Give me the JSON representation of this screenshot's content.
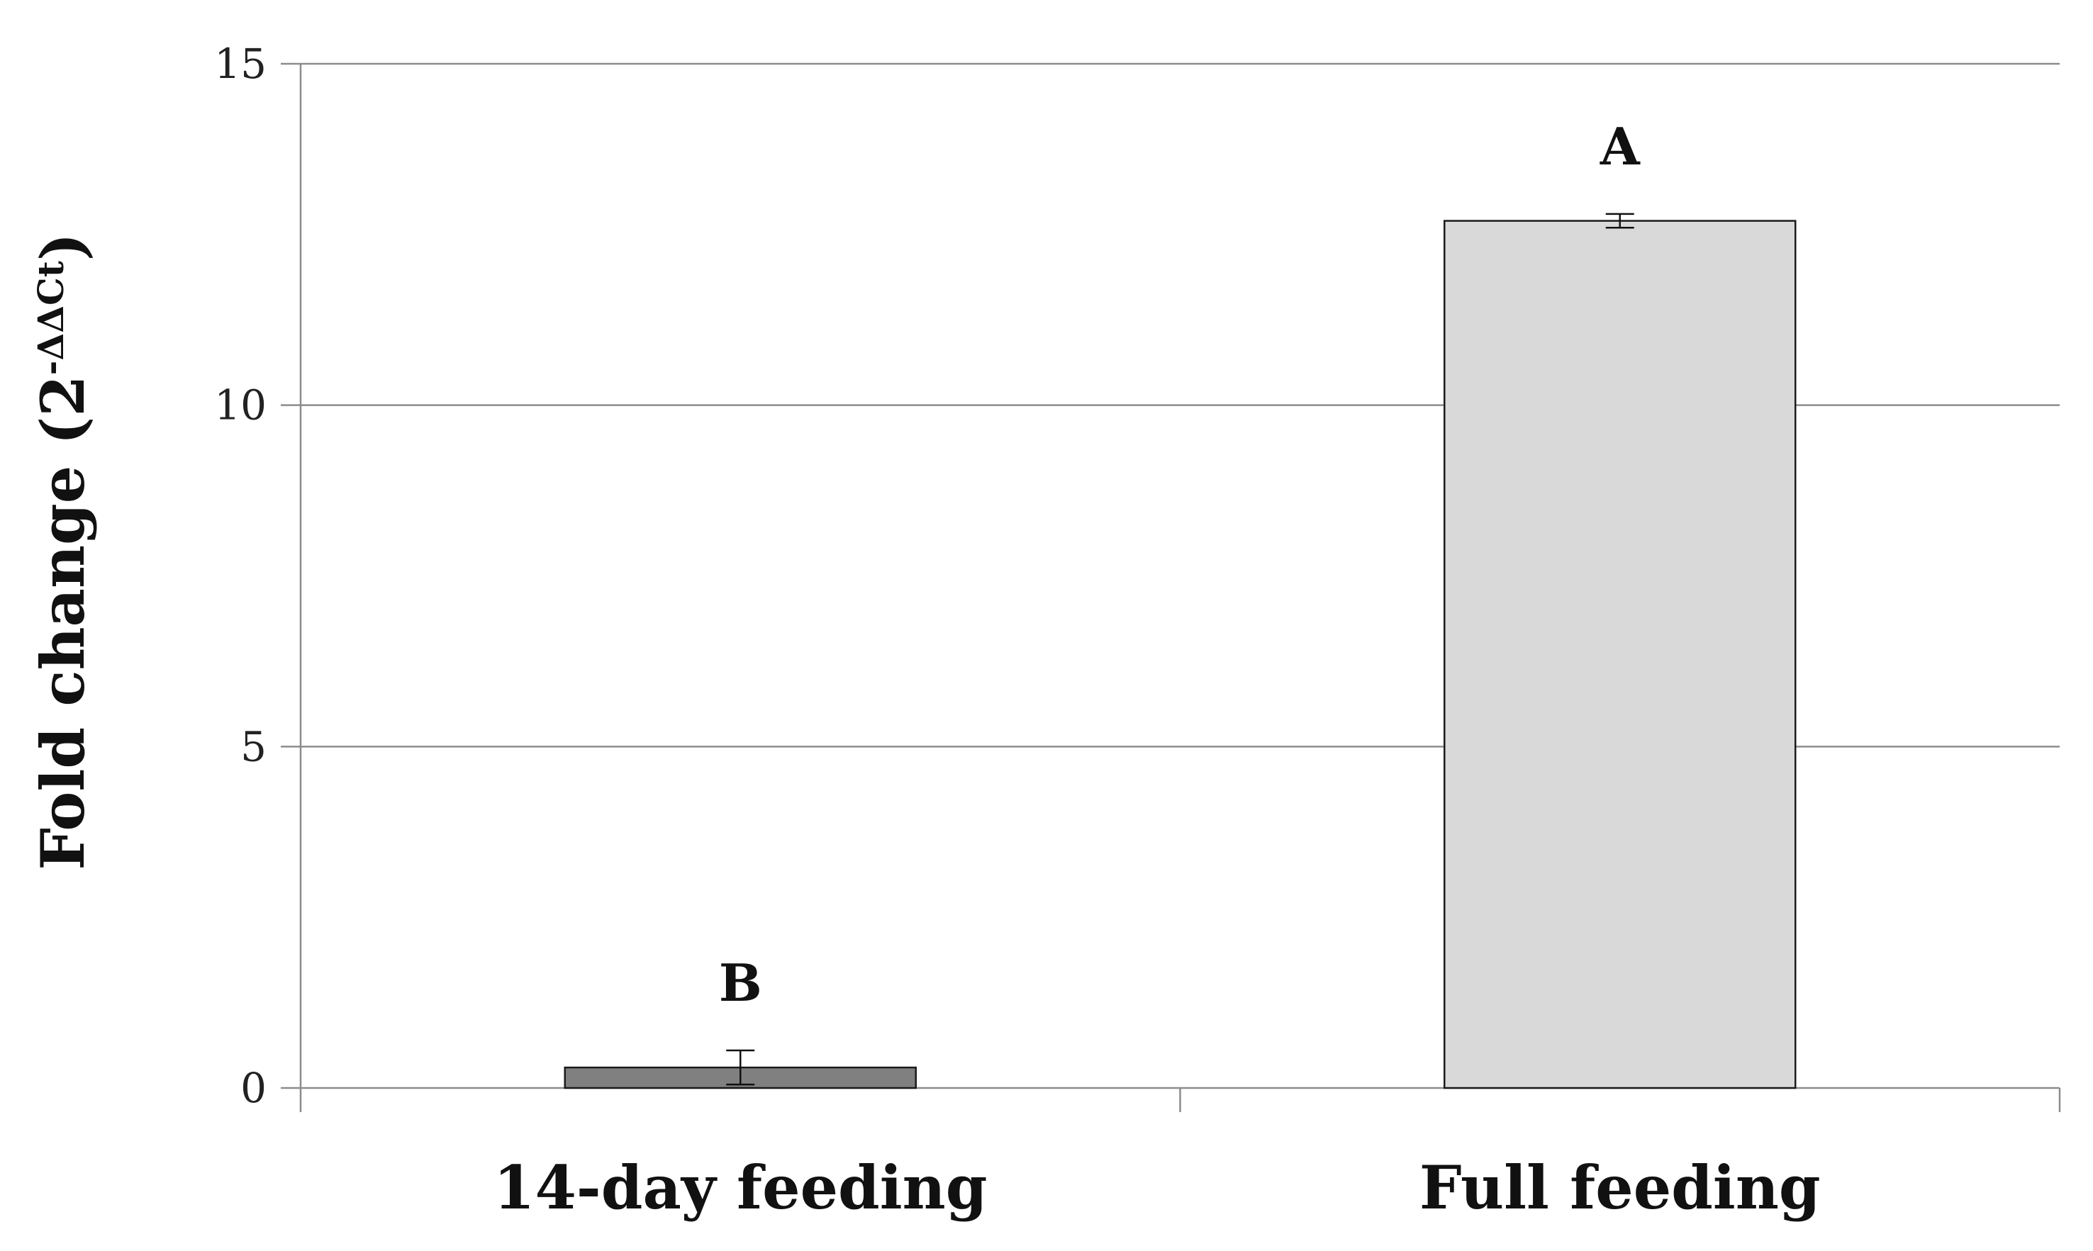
{
  "chart_data": {
    "type": "bar",
    "title": "",
    "xlabel": "",
    "ylabel": "Fold change (2",
    "ylabel_superscript": "-ΔΔCt",
    "ylabel_close": ")",
    "categories": [
      "14-day feeding",
      "Full feeding"
    ],
    "values": [
      0.3,
      12.7
    ],
    "errors": [
      0.25,
      0.1
    ],
    "significance": [
      "B",
      "A"
    ],
    "ylim": [
      0,
      15
    ],
    "yticks": [
      0,
      5,
      10,
      15
    ],
    "ytick_labels": [
      "0",
      "5",
      "10",
      "15"
    ],
    "grid": true,
    "legend": "none",
    "colors": {
      "bars": [
        "#808080",
        "#d9d9d9"
      ],
      "bar_stroke": "#1a1a1a",
      "grid": "#8c8c8c",
      "axis": "#8c8c8c"
    }
  }
}
